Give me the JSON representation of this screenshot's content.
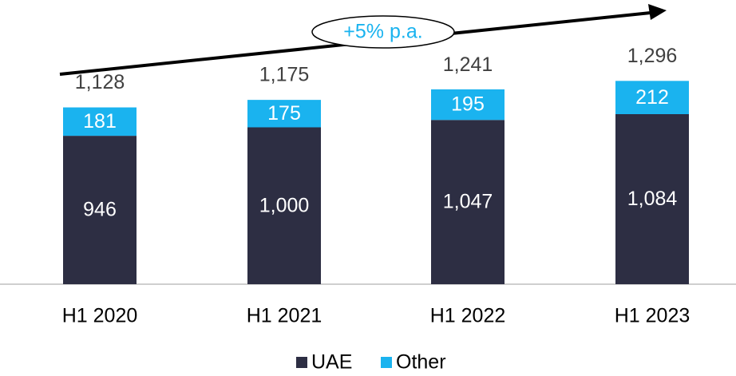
{
  "chart_data": {
    "type": "stacked-bar",
    "annotation": "+5% p.a.",
    "categories": [
      "H1 2020",
      "H1 2021",
      "H1 2022",
      "H1 2023"
    ],
    "series": [
      {
        "name": "UAE",
        "color": "#2d2e43",
        "values": [
          946,
          1000,
          1047,
          1084
        ],
        "value_labels": [
          "946",
          "1,000",
          "1,047",
          "1,084"
        ]
      },
      {
        "name": "Other",
        "color": "#1ab3ef",
        "values": [
          181,
          175,
          195,
          212
        ]
      }
    ],
    "totals": [
      1128,
      1175,
      1241,
      1296
    ],
    "total_labels": [
      "1,128",
      "1,175",
      "1,241",
      "1,296"
    ],
    "legend": "bottom"
  }
}
